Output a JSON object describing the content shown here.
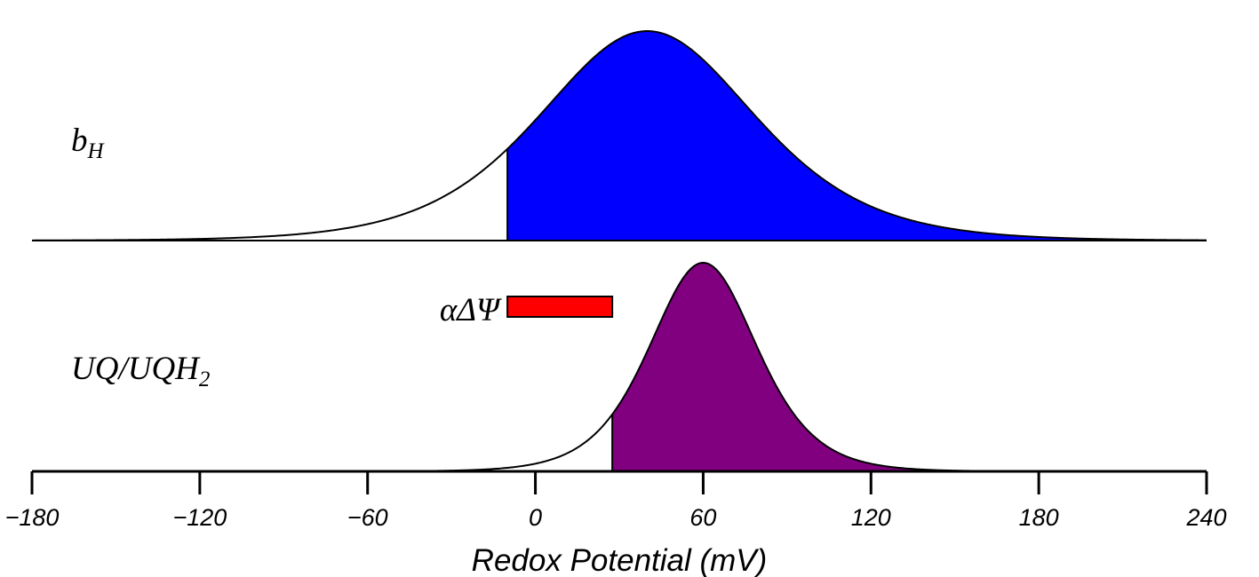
{
  "chart_data": {
    "type": "area",
    "title": "",
    "xlabel": "Redox Potential (mV)",
    "ylabel": "",
    "xlim": [
      -180,
      240
    ],
    "x_ticks": [
      -180,
      -120,
      -60,
      0,
      60,
      120,
      180,
      240
    ],
    "x_tick_labels": [
      "−180",
      "−120",
      "−60",
      "0",
      "60",
      "120",
      "180",
      "240"
    ],
    "grid": false,
    "legend": "none",
    "series": [
      {
        "name": "b_H",
        "label_main": "b",
        "label_sub": "H",
        "shape": "Nernst derivative (sech²)",
        "midpoint_mV": 40,
        "n_electrons": 1,
        "shaded_from_mV": -10,
        "fill_color": "#0000ff",
        "panel": "top"
      },
      {
        "name": "UQ/UQH2",
        "label_main": "UQ/UQH",
        "label_sub": "2",
        "shape": "Nernst derivative (sech²)",
        "midpoint_mV": 60,
        "n_electrons": 2,
        "shaded_from_mV": 27.5,
        "fill_color": "#800080",
        "panel": "bottom"
      }
    ],
    "annotations": [
      {
        "name": "alpha-delta-psi-bar",
        "label": "αΔΨ",
        "x_start_mV": -10,
        "x_end_mV": 27.5,
        "color": "#ff0000",
        "panel": "bottom"
      }
    ]
  }
}
